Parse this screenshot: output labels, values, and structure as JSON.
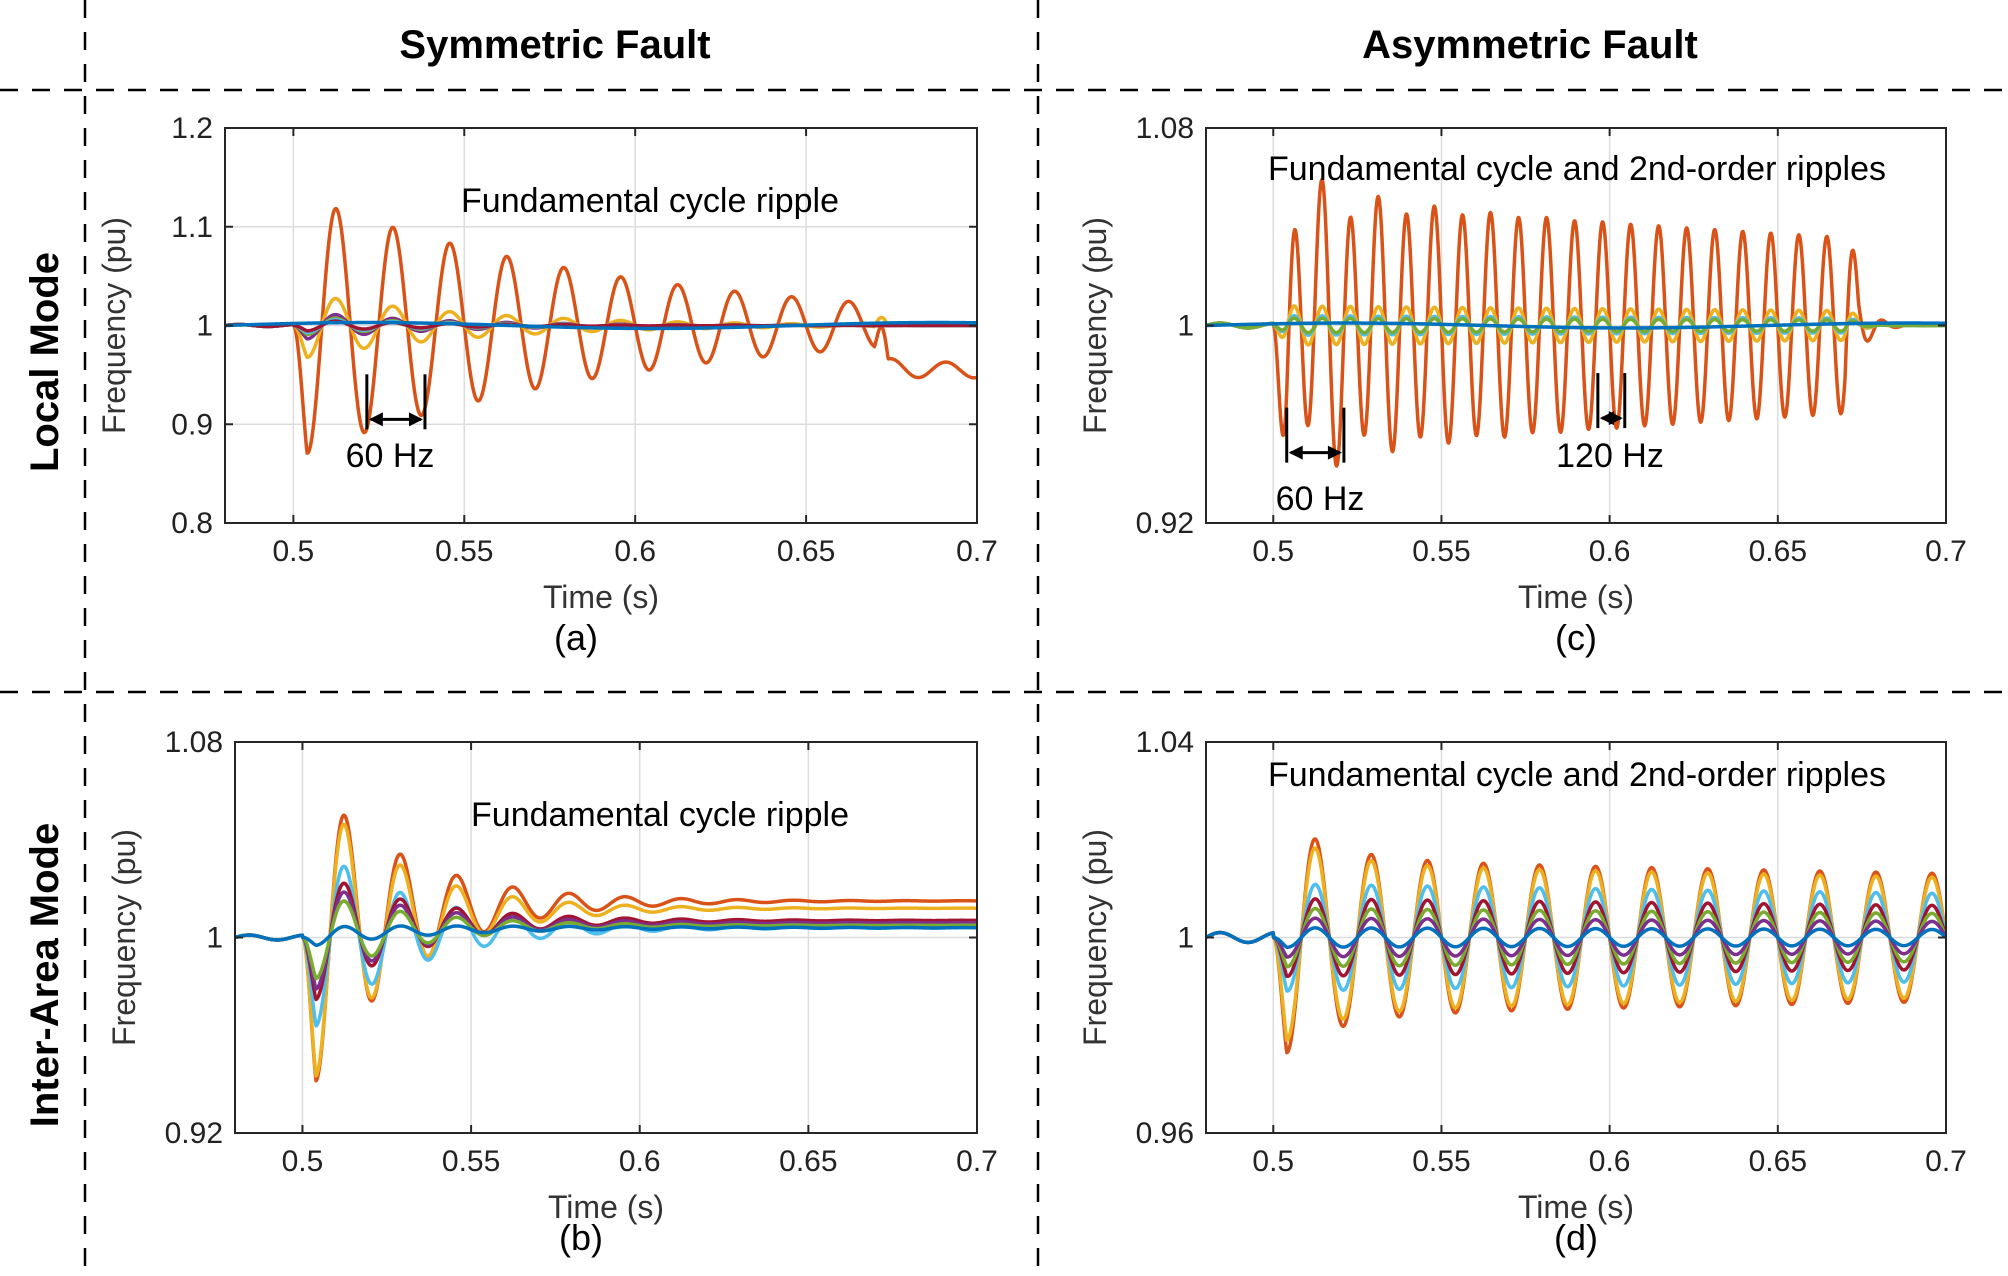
{
  "layout": {
    "column_headers": [
      "Symmetric Fault",
      "Asymmetric Fault"
    ],
    "row_headers": [
      "Local Mode",
      "Inter-Area Mode"
    ]
  },
  "chart_data": [
    {
      "id": "a",
      "type": "line",
      "caption": "(a)",
      "xlabel": "Time (s)",
      "ylabel": "Frequency (pu)",
      "xlim": [
        0.48,
        0.7
      ],
      "ylim": [
        0.8,
        1.2
      ],
      "xticks": [
        0.5,
        0.55,
        0.6,
        0.65,
        0.7
      ],
      "xtick_labels": [
        "0.5",
        "0.55",
        "0.6",
        "0.65",
        "0.7"
      ],
      "yticks": [
        0.8,
        0.9,
        1.0,
        1.1,
        1.2
      ],
      "ytick_labels": [
        "0.8",
        "0.9",
        "1",
        "1.1",
        "1.2"
      ],
      "grid": true,
      "annotation": "Fundamental cycle ripple",
      "period_markers": [
        {
          "label": "60 Hz",
          "t1": 0.5215,
          "t2": 0.5385,
          "y": 0.905
        }
      ],
      "fault_start": 0.5,
      "series": [
        {
          "color": "#D95319",
          "amp": 0.135,
          "freq": 60,
          "tau": 0.095,
          "phase": 3.14159,
          "clear": 0.67,
          "post_offset": -0.045,
          "post_amp": 0.008
        },
        {
          "color": "#EDB120",
          "amp": 0.035,
          "freq": 60,
          "tau": 0.05,
          "phase": 3.14159,
          "clear": 0.67
        },
        {
          "color": "#7E2F8E",
          "amp": 0.015,
          "freq": 60,
          "tau": 0.04,
          "phase": 3.14159
        },
        {
          "color": "#77AC30",
          "amp": 0.01,
          "freq": 60,
          "tau": 0.04,
          "phase": 3.14159
        },
        {
          "color": "#4DBEEE",
          "amp": 0.008,
          "freq": 60,
          "tau": 0.04,
          "phase": 3.14159
        },
        {
          "color": "#A2142F",
          "amp": 0.006,
          "freq": 60,
          "tau": 0.04,
          "phase": 3.14159
        },
        {
          "color": "#0072BD",
          "amp": 0.003,
          "freq": 6,
          "tau": 1.0,
          "phase": 0,
          "offset": 0.003
        }
      ]
    },
    {
      "id": "b",
      "type": "line",
      "caption": "(b)",
      "xlabel": "Time (s)",
      "ylabel": "Frequency (pu)",
      "xlim": [
        0.48,
        0.7
      ],
      "ylim": [
        0.92,
        1.08
      ],
      "xticks": [
        0.5,
        0.55,
        0.6,
        0.65,
        0.7
      ],
      "xtick_labels": [
        "0.5",
        "0.55",
        "0.6",
        "0.65",
        "0.7"
      ],
      "yticks": [
        0.92,
        1.0,
        1.08
      ],
      "ytick_labels": [
        "0.92",
        "1",
        "1.08"
      ],
      "grid": true,
      "annotation": "Fundamental cycle ripple",
      "fault_start": 0.5,
      "series": [
        {
          "color": "#D95319",
          "amp": 0.07,
          "freq": 60,
          "tau": 0.028,
          "phase": 3.14159,
          "offset": 0.015
        },
        {
          "color": "#EDB120",
          "amp": 0.068,
          "freq": 60,
          "tau": 0.026,
          "phase": 3.14159,
          "offset": 0.012
        },
        {
          "color": "#4DBEEE",
          "amp": 0.042,
          "freq": 60,
          "tau": 0.03,
          "phase": 3.14159,
          "offset": 0.004
        },
        {
          "color": "#A2142F",
          "amp": 0.03,
          "freq": 60,
          "tau": 0.03,
          "phase": 3.14159,
          "offset": 0.007
        },
        {
          "color": "#7E2F8E",
          "amp": 0.025,
          "freq": 60,
          "tau": 0.03,
          "phase": 3.14159,
          "offset": 0.006
        },
        {
          "color": "#77AC30",
          "amp": 0.02,
          "freq": 60,
          "tau": 0.03,
          "phase": 3.14159,
          "offset": 0.005
        },
        {
          "color": "#0072BD",
          "amp": 0.004,
          "freq": 60,
          "tau": 0.05,
          "phase": 3.14159,
          "offset": 0.004
        }
      ]
    },
    {
      "id": "c",
      "type": "line",
      "caption": "(c)",
      "xlabel": "Time (s)",
      "ylabel": "Frequency (pu)",
      "xlim": [
        0.48,
        0.7
      ],
      "ylim": [
        0.92,
        1.08
      ],
      "xticks": [
        0.5,
        0.55,
        0.6,
        0.65,
        0.7
      ],
      "xtick_labels": [
        "0.5",
        "0.55",
        "0.6",
        "0.65",
        "0.7"
      ],
      "yticks": [
        0.92,
        1.0,
        1.08
      ],
      "ytick_labels": [
        "0.92",
        "1",
        "1.08"
      ],
      "grid": true,
      "annotation": "Fundamental cycle and 2nd-order ripples",
      "period_markers": [
        {
          "label": "60 Hz",
          "t1": 0.504,
          "t2": 0.521,
          "y": 0.9485
        },
        {
          "label": "120 Hz",
          "t1": 0.5965,
          "t2": 0.6045,
          "y": 0.9625
        }
      ],
      "fault_start": 0.5,
      "series": [
        {
          "color": "#D95319",
          "amp": 0.052,
          "freq": 120,
          "tau": 0.45,
          "phase": 3.14159,
          "clear": 0.67,
          "extra_amp": 0.025,
          "extra_freq": 60,
          "extra_tau": 0.02
        },
        {
          "color": "#EDB120",
          "amp": 0.008,
          "freq": 120,
          "tau": 0.6,
          "phase": 3.14159,
          "clear": 0.67
        },
        {
          "color": "#4DBEEE",
          "amp": 0.004,
          "freq": 120,
          "tau": 0.6,
          "phase": 3.14159,
          "clear": 0.67
        },
        {
          "color": "#77AC30",
          "amp": 0.003,
          "freq": 120,
          "tau": 0.6,
          "phase": 3.14159,
          "clear": 0.67
        },
        {
          "color": "#0072BD",
          "amp": 0.001,
          "freq": 6,
          "tau": 1.0,
          "phase": 0,
          "offset": 0.001
        }
      ]
    },
    {
      "id": "d",
      "type": "line",
      "caption": "(d)",
      "xlabel": "Time (s)",
      "ylabel": "Frequency (pu)",
      "xlim": [
        0.48,
        0.7
      ],
      "ylim": [
        0.96,
        1.04
      ],
      "xticks": [
        0.5,
        0.55,
        0.6,
        0.65,
        0.7
      ],
      "xtick_labels": [
        "0.5",
        "0.55",
        "0.6",
        "0.65",
        "0.7"
      ],
      "yticks": [
        0.96,
        1.0,
        1.04
      ],
      "ytick_labels": [
        "0.96",
        "1",
        "1.04"
      ],
      "grid": true,
      "annotation": "Fundamental cycle and 2nd-order ripples",
      "fault_start": 0.5,
      "series": [
        {
          "color": "#D95319",
          "amp": 0.016,
          "freq": 60,
          "tau": 1.0,
          "phase": 3.14159,
          "extra_amp": 0.01,
          "extra_freq": 60,
          "extra_tau": 0.015
        },
        {
          "color": "#EDB120",
          "amp": 0.015,
          "freq": 60,
          "tau": 1.0,
          "phase": 3.14159,
          "extra_amp": 0.008,
          "extra_freq": 60,
          "extra_tau": 0.015
        },
        {
          "color": "#4DBEEE",
          "amp": 0.011,
          "freq": 60,
          "tau": 1.0,
          "phase": 3.14159
        },
        {
          "color": "#A2142F",
          "amp": 0.008,
          "freq": 60,
          "tau": 1.0,
          "phase": 3.14159
        },
        {
          "color": "#77AC30",
          "amp": 0.006,
          "freq": 60,
          "tau": 1.0,
          "phase": 3.14159
        },
        {
          "color": "#7E2F8E",
          "amp": 0.004,
          "freq": 60,
          "tau": 1.0,
          "phase": 3.14159
        },
        {
          "color": "#0072BD",
          "amp": 0.002,
          "freq": 60,
          "tau": 1.0,
          "phase": 3.14159
        }
      ]
    }
  ]
}
